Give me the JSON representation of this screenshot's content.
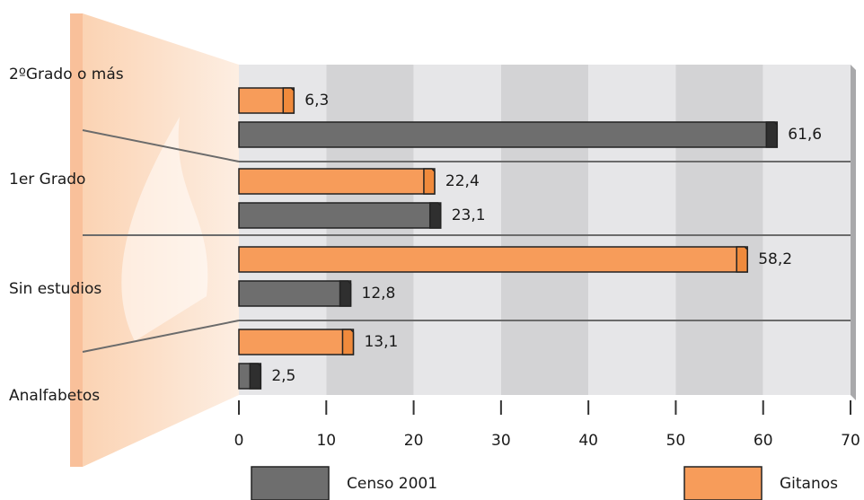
{
  "chart_data": {
    "type": "hbar",
    "categories": [
      "2ºGrado o más",
      "1er Grado",
      "Sin estudios",
      "Analfabetos"
    ],
    "series": [
      {
        "name": "Censo 2001",
        "color": "#6e6e6e",
        "values": [
          61.6,
          23.1,
          12.8,
          2.5
        ],
        "value_labels": [
          "61,6",
          "23,1",
          "12,8",
          "2,5"
        ]
      },
      {
        "name": "Gitanos",
        "color": "#f79c5a",
        "values": [
          6.3,
          22.4,
          58.2,
          13.1
        ],
        "value_labels": [
          "6,3",
          "22,4",
          "58,2",
          "13,1"
        ]
      }
    ],
    "xlim": [
      0,
      70
    ],
    "xticks": [
      0,
      10,
      20,
      30,
      40,
      50,
      60,
      70
    ]
  }
}
